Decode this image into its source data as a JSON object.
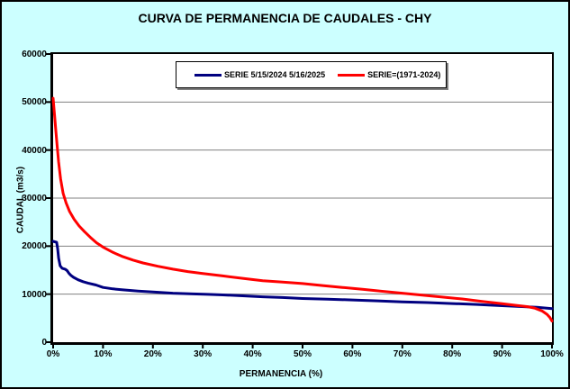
{
  "title": "CURVA DE PERMANENCIA DE CAUDALES - CHY",
  "colors": {
    "background": "#CCFFFF",
    "plot_background": "#FFFFFF",
    "gridline": "#808080",
    "axis": "#000000",
    "series1": "#000080",
    "series2": "#FF0000",
    "legend_shadow": "#808080"
  },
  "x_axis": {
    "title": "PERMANENCIA (%)",
    "ticks": [
      "0%",
      "10%",
      "20%",
      "30%",
      "40%",
      "50%",
      "60%",
      "70%",
      "80%",
      "90%",
      "100%"
    ]
  },
  "y_axis": {
    "title": "CAUDAL (m3/s)",
    "ticks": [
      "0",
      "10000",
      "20000",
      "30000",
      "40000",
      "50000",
      "60000"
    ]
  },
  "legend": {
    "entries": [
      {
        "label": "SERIE 5/15/2024 5/16/2025",
        "color": "#000080"
      },
      {
        "label": "SERIE=(1971-2024)",
        "color": "#FF0000"
      }
    ]
  },
  "chart_data": {
    "type": "line",
    "title": "CURVA DE PERMANENCIA DE CAUDALES - CHY",
    "xlabel": "PERMANENCIA (%)",
    "ylabel": "CAUDAL (m3/s)",
    "xlim": [
      0,
      100
    ],
    "ylim": [
      0,
      60000
    ],
    "x_tick_values": [
      0,
      10,
      20,
      30,
      40,
      50,
      60,
      70,
      80,
      90,
      100
    ],
    "y_tick_values": [
      0,
      10000,
      20000,
      30000,
      40000,
      50000,
      60000
    ],
    "grid": "horizontal",
    "legend_position": "top-inside",
    "series": [
      {
        "name": "SERIE 5/15/2024 5/16/2025",
        "color": "#000080",
        "points": [
          [
            0,
            21000
          ],
          [
            0.3,
            20900
          ],
          [
            0.7,
            20800
          ],
          [
            0.9,
            19500
          ],
          [
            1.1,
            17500
          ],
          [
            1.4,
            15900
          ],
          [
            1.8,
            15400
          ],
          [
            2.4,
            15200
          ],
          [
            2.8,
            14900
          ],
          [
            3.2,
            14300
          ],
          [
            3.6,
            13900
          ],
          [
            4.1,
            13500
          ],
          [
            5,
            13000
          ],
          [
            6,
            12600
          ],
          [
            7,
            12300
          ],
          [
            8.6,
            11900
          ],
          [
            10,
            11400
          ],
          [
            12,
            11100
          ],
          [
            14,
            10900
          ],
          [
            17,
            10650
          ],
          [
            20,
            10450
          ],
          [
            24,
            10200
          ],
          [
            28,
            10050
          ],
          [
            31,
            9950
          ],
          [
            34,
            9850
          ],
          [
            38,
            9650
          ],
          [
            42,
            9450
          ],
          [
            46,
            9300
          ],
          [
            50,
            9100
          ],
          [
            55,
            8950
          ],
          [
            60,
            8800
          ],
          [
            65,
            8600
          ],
          [
            70,
            8400
          ],
          [
            75,
            8250
          ],
          [
            80,
            8050
          ],
          [
            85,
            7850
          ],
          [
            90,
            7600
          ],
          [
            94,
            7400
          ],
          [
            97,
            7250
          ],
          [
            100,
            7000
          ]
        ]
      },
      {
        "name": "SERIE=(1971-2024)",
        "color": "#FF0000",
        "points": [
          [
            0,
            50800
          ],
          [
            0.15,
            49000
          ],
          [
            0.3,
            47000
          ],
          [
            0.5,
            44500
          ],
          [
            0.8,
            41000
          ],
          [
            1.1,
            37500
          ],
          [
            1.5,
            34000
          ],
          [
            2,
            31000
          ],
          [
            2.6,
            29000
          ],
          [
            3.3,
            27200
          ],
          [
            4.2,
            25600
          ],
          [
            5.2,
            24200
          ],
          [
            6.3,
            23000
          ],
          [
            7.5,
            21800
          ],
          [
            8.7,
            20700
          ],
          [
            10,
            19800
          ],
          [
            12,
            18700
          ],
          [
            14,
            17800
          ],
          [
            16,
            17100
          ],
          [
            18,
            16500
          ],
          [
            21,
            15800
          ],
          [
            24,
            15200
          ],
          [
            27,
            14700
          ],
          [
            30,
            14300
          ],
          [
            34,
            13800
          ],
          [
            38,
            13300
          ],
          [
            42,
            12800
          ],
          [
            46,
            12500
          ],
          [
            50,
            12200
          ],
          [
            54,
            11800
          ],
          [
            58,
            11400
          ],
          [
            62,
            11000
          ],
          [
            66,
            10600
          ],
          [
            70,
            10200
          ],
          [
            74,
            9800
          ],
          [
            78,
            9400
          ],
          [
            82,
            9000
          ],
          [
            86,
            8500
          ],
          [
            90,
            8000
          ],
          [
            93,
            7650
          ],
          [
            95,
            7400
          ],
          [
            96.5,
            7100
          ],
          [
            98,
            6500
          ],
          [
            99,
            5800
          ],
          [
            99.6,
            5100
          ],
          [
            100,
            4400
          ]
        ]
      }
    ]
  }
}
